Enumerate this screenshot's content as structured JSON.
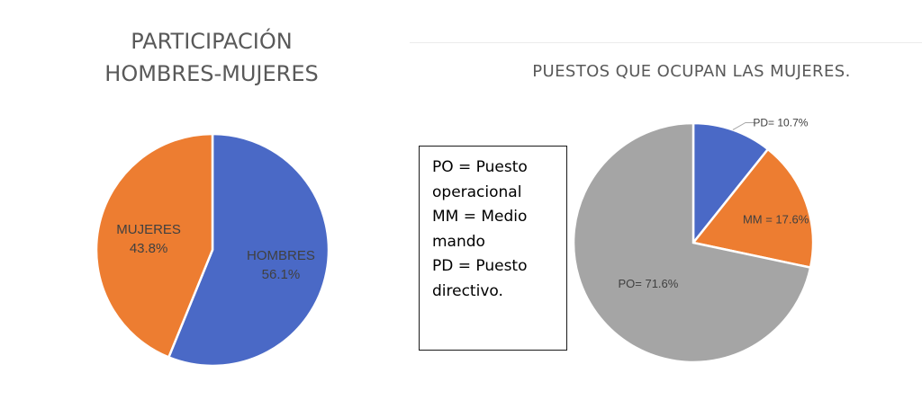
{
  "chart_data": [
    {
      "type": "pie",
      "title_lines": [
        "PARTICIPACIÓN",
        "HOMBRES-MUJERES"
      ],
      "slices": [
        {
          "label": "HOMBRES",
          "value_label": "56.1%",
          "value": 56.1,
          "color": "#4a69c6"
        },
        {
          "label": "MUJERES",
          "value_label": "43.8%",
          "value": 43.8,
          "color": "#ed7d31"
        }
      ]
    },
    {
      "type": "pie",
      "title": "PUESTOS QUE OCUPAN LAS MUJERES.",
      "slices": [
        {
          "label": "PD= 10.7%",
          "value": 10.7,
          "color": "#4a69c6"
        },
        {
          "label": "MM = 17.6%",
          "value": 17.6,
          "color": "#ed7d31"
        },
        {
          "label": "PO= 71.6%",
          "value": 71.6,
          "color": "#a5a5a5"
        }
      ]
    }
  ],
  "legend_box": {
    "lines": [
      "PO = Puesto",
      "operacional",
      "MM = Medio",
      "mando",
      "PD = Puesto",
      "directivo."
    ]
  }
}
